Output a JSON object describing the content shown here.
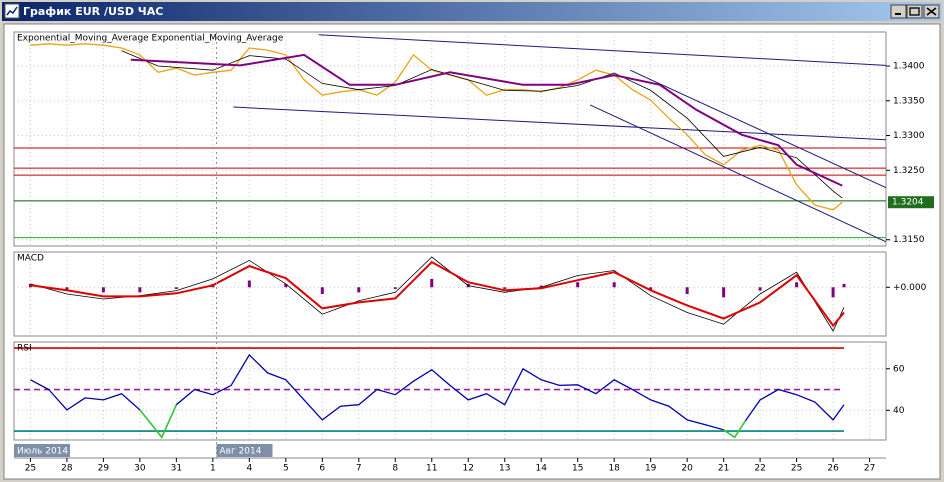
{
  "window": {
    "title": "График EUR /USD  ЧАС"
  },
  "chart_data": [
    {
      "type": "line",
      "title": "Exponential_Moving_Average Exponential_Moving_Average",
      "xlim": [
        -0.45,
        23.45
      ],
      "ylim": [
        1.3141,
        1.3449
      ],
      "yticks": [
        {
          "value": 1.34,
          "label": "1.3400"
        },
        {
          "value": 1.335,
          "label": "1.3350"
        },
        {
          "value": 1.33,
          "label": "1.3300"
        },
        {
          "value": 1.325,
          "label": "1.3250"
        },
        {
          "value": 1.315,
          "label": "1.3150"
        }
      ],
      "grid": true,
      "last_value": 1.3204,
      "last_color": "#1e6e1e",
      "levels": [
        {
          "value": 1.3282,
          "color": "#c00000"
        },
        {
          "value": 1.3253,
          "color": "#c00000"
        },
        {
          "value": 1.3243,
          "color": "#c00000"
        },
        {
          "value": 1.3206,
          "color": "#006400"
        },
        {
          "value": 1.3153,
          "color": "#20b020"
        }
      ],
      "trendlines": [
        {
          "x": [
            7.9,
            23.45
          ],
          "y": [
            1.3445,
            1.3401
          ],
          "color": "#1c1c7a"
        },
        {
          "x": [
            5.56,
            23.45
          ],
          "y": [
            1.3341,
            1.3294
          ],
          "color": "#1c1c7a"
        },
        {
          "x": [
            15.34,
            23.45
          ],
          "y": [
            1.3344,
            1.3147
          ],
          "color": "#1c1c7a"
        },
        {
          "x": [
            16.44,
            23.45
          ],
          "y": [
            1.3394,
            1.3225
          ],
          "color": "#1c1c7a"
        }
      ],
      "series": [
        {
          "type": "line",
          "color": "#e8a317",
          "width": 1.3,
          "x": [
            0,
            0.5,
            1,
            1.5,
            2,
            2.5,
            3,
            3.5,
            4,
            4.5,
            5,
            5.5,
            6,
            6.5,
            7,
            7.5,
            8,
            8.5,
            9,
            9.5,
            10,
            10.5,
            11,
            11.5,
            12,
            12.5,
            13,
            13.5,
            14,
            14.5,
            15,
            15.5,
            16,
            16.5,
            17,
            17.5,
            18,
            18.5,
            19,
            19.5,
            20,
            20.5,
            21,
            21.5,
            22,
            22.25
          ],
          "values": [
            1.343,
            1.3432,
            1.343,
            1.3432,
            1.343,
            1.3426,
            1.3416,
            1.3391,
            1.3397,
            1.3387,
            1.3391,
            1.3394,
            1.3426,
            1.3423,
            1.3416,
            1.338,
            1.3358,
            1.3363,
            1.3366,
            1.3358,
            1.3377,
            1.3416,
            1.3394,
            1.3387,
            1.338,
            1.3358,
            1.3366,
            1.3366,
            1.3363,
            1.3369,
            1.338,
            1.3394,
            1.3387,
            1.3366,
            1.3351,
            1.3325,
            1.3301,
            1.3272,
            1.3258,
            1.3279,
            1.3286,
            1.3279,
            1.3229,
            1.32,
            1.3193,
            1.3204
          ]
        },
        {
          "type": "line",
          "color": "#000000",
          "width": 0.8,
          "x": [
            2.5,
            3.5,
            5,
            6,
            7,
            8,
            9,
            10,
            11,
            12,
            13,
            14,
            15,
            16,
            17,
            18,
            19,
            20,
            21,
            22,
            22.25
          ],
          "values": [
            1.3422,
            1.34,
            1.3394,
            1.3415,
            1.341,
            1.3375,
            1.3366,
            1.3372,
            1.3395,
            1.338,
            1.3365,
            1.3364,
            1.3372,
            1.339,
            1.3365,
            1.3325,
            1.327,
            1.3283,
            1.3268,
            1.322,
            1.321
          ]
        },
        {
          "type": "line",
          "color": "#800080",
          "width": 2,
          "x": [
            2.75,
            5.75,
            7.5,
            8.75,
            10,
            11.5,
            13.5,
            14.75,
            16,
            17.25,
            18.25,
            19.5,
            20.5,
            21,
            22.25
          ],
          "values": [
            1.3409,
            1.3401,
            1.3416,
            1.3373,
            1.3373,
            1.3391,
            1.3373,
            1.3373,
            1.3387,
            1.3373,
            1.3337,
            1.3301,
            1.3286,
            1.3258,
            1.3228
          ]
        }
      ]
    },
    {
      "type": "line",
      "title": "MACD",
      "xlim": [
        -0.45,
        23.45
      ],
      "ylim": [
        -0.0029,
        0.0021
      ],
      "yticks": [
        {
          "value": 0,
          "label": "+0.000"
        }
      ],
      "grid": true,
      "series": [
        {
          "type": "bar",
          "color": "#800080",
          "x": [
            0,
            1,
            2,
            3,
            4,
            5,
            6,
            7,
            8,
            9,
            10,
            11,
            12,
            13,
            14,
            15,
            16,
            17,
            18,
            19,
            20,
            21,
            22,
            22.3
          ],
          "values": [
            0.0002,
            -0.0002,
            -0.0003,
            -0.0003,
            -0.0001,
            0.0002,
            0.0004,
            0.0002,
            -0.0004,
            -0.0003,
            -0.0001,
            0.0005,
            0.0002,
            -0.0001,
            0.0001,
            0.0003,
            0.0003,
            -0.0002,
            -0.0004,
            -0.0006,
            -0.0002,
            0.0003,
            -0.0006,
            0.0002
          ]
        },
        {
          "type": "line",
          "color": "#000000",
          "width": 0.8,
          "x": [
            0,
            1,
            2,
            3,
            4,
            5,
            6,
            7,
            8,
            9,
            10,
            11,
            12,
            13,
            14,
            15,
            16,
            17,
            18,
            19,
            20,
            21,
            22,
            22.3
          ],
          "values": [
            0.0002,
            -0.0004,
            -0.0007,
            -0.0005,
            -0.0002,
            0.0005,
            0.0016,
            0.0002,
            -0.0016,
            -0.0008,
            -0.0003,
            0.0018,
            0.0001,
            -0.0003,
            0.0,
            0.0007,
            0.001,
            -0.0005,
            -0.0015,
            -0.0022,
            -0.0004,
            0.0009,
            -0.0026,
            -0.0012
          ]
        },
        {
          "type": "line",
          "color": "#e00000",
          "width": 2,
          "x": [
            0,
            1,
            2,
            3,
            4,
            5,
            6,
            7,
            8,
            9,
            10,
            11,
            12,
            13,
            14,
            15,
            16,
            17,
            18,
            19,
            20,
            21,
            22,
            22.3
          ],
          "values": [
            0.00012,
            -0.00018,
            -0.00054,
            -0.00054,
            -0.00036,
            0.00012,
            0.00126,
            0.00054,
            -0.00126,
            -0.0009,
            -0.00066,
            0.0015,
            0.0003,
            -0.00018,
            -6e-05,
            0.00042,
            0.0009,
            -0.00018,
            -0.00108,
            -0.00186,
            -0.0009,
            0.00072,
            -0.00228,
            -0.0015
          ]
        }
      ]
    },
    {
      "type": "line",
      "title": "RSI",
      "xlim": [
        -0.45,
        23.45
      ],
      "ylim": [
        25.7,
        72.9
      ],
      "yticks": [
        60,
        40
      ],
      "grid": true,
      "levels": [
        {
          "value": 70,
          "color": "#d00000"
        },
        {
          "value": 50,
          "color": "#a020a0",
          "dash": true
        },
        {
          "value": 30,
          "color": "#008080"
        }
      ],
      "series": [
        {
          "type": "line",
          "color": "#0000b0",
          "width": 1.3,
          "low_color": "#33cc33",
          "x": [
            0,
            0.5,
            1,
            1.5,
            2,
            2.5,
            3,
            3.6,
            4,
            4.5,
            5,
            5.5,
            6,
            6.5,
            7,
            7.5,
            8,
            8.5,
            9,
            9.5,
            10,
            10.5,
            11,
            11.5,
            12,
            12.5,
            13,
            13.5,
            14,
            14.5,
            15,
            15.5,
            16,
            16.5,
            17,
            17.5,
            18,
            18.5,
            19,
            19.3,
            19.6,
            20,
            20.5,
            21,
            21.5,
            22,
            22.3
          ],
          "values": [
            54.7,
            50,
            40.2,
            46,
            45,
            48,
            40.2,
            27,
            42.7,
            50,
            47.5,
            52,
            66.7,
            58,
            54.7,
            45,
            35.4,
            42,
            42.7,
            50,
            47.5,
            54,
            59.5,
            52,
            45,
            48,
            42.7,
            60,
            54.7,
            52,
            52.3,
            48,
            54.7,
            50,
            45,
            42,
            35.4,
            33,
            30.6,
            27,
            35,
            45,
            50,
            47.5,
            44,
            35.4,
            42.7
          ]
        }
      ],
      "separator_x": 5.1,
      "period_labels": [
        {
          "x": -0.45,
          "text": "Июль 2014"
        },
        {
          "x": 5.1,
          "text": "Авг 2014"
        }
      ],
      "xticks": [
        {
          "value": 0,
          "label": "25"
        },
        {
          "value": 1,
          "label": "28"
        },
        {
          "value": 2,
          "label": "29"
        },
        {
          "value": 3,
          "label": "30"
        },
        {
          "value": 4,
          "label": "31"
        },
        {
          "value": 5,
          "label": "1"
        },
        {
          "value": 6,
          "label": "4"
        },
        {
          "value": 7,
          "label": "5"
        },
        {
          "value": 8,
          "label": "6"
        },
        {
          "value": 9,
          "label": "7"
        },
        {
          "value": 10,
          "label": "8"
        },
        {
          "value": 11,
          "label": "11"
        },
        {
          "value": 12,
          "label": "12"
        },
        {
          "value": 13,
          "label": "13"
        },
        {
          "value": 14,
          "label": "14"
        },
        {
          "value": 15,
          "label": "15"
        },
        {
          "value": 16,
          "label": "18"
        },
        {
          "value": 17,
          "label": "19"
        },
        {
          "value": 18,
          "label": "20"
        },
        {
          "value": 19,
          "label": "21"
        },
        {
          "value": 20,
          "label": "22"
        },
        {
          "value": 21,
          "label": "25"
        },
        {
          "value": 22,
          "label": "26"
        },
        {
          "value": 23,
          "label": "27"
        }
      ]
    }
  ]
}
